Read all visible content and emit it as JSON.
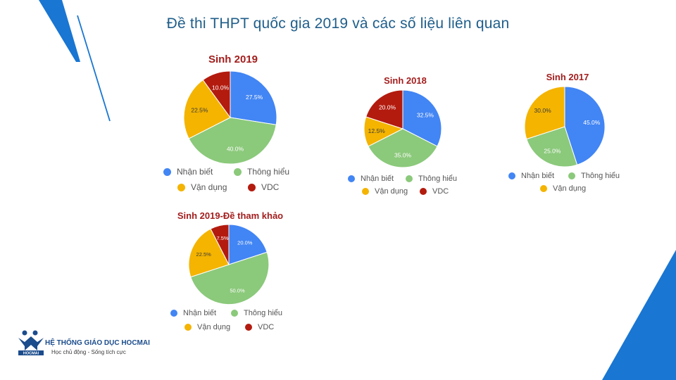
{
  "page": {
    "title": "Đề thi THPT quốc gia 2019 và các số liệu liên quan"
  },
  "colors": {
    "nhan_biet": "#4285f4",
    "thong_hieu": "#8bc97b",
    "van_dung": "#f4b400",
    "vdc": "#b31b0f",
    "title_red": "#a31d1d",
    "accent_blue": "#1976d2"
  },
  "chart_data": [
    {
      "type": "pie",
      "title": "Sinh 2019",
      "labels": [
        "Nhận biết",
        "Thông hiểu",
        "Vận dụng",
        "VDC"
      ],
      "values": [
        27.5,
        40.0,
        22.5,
        10.0
      ],
      "value_labels": [
        "27.5%",
        "40.0%",
        "22.5%",
        "10.0%"
      ],
      "legend_rows": [
        [
          "Nhận biết",
          "Thông hiểu"
        ],
        [
          "Vận dụng",
          "VDC"
        ]
      ],
      "legend_placement": "bottom"
    },
    {
      "type": "pie",
      "title": "Sinh 2018",
      "labels": [
        "Nhận biết",
        "Thông hiểu",
        "Vận dụng",
        "VDC"
      ],
      "values": [
        32.5,
        35.0,
        12.5,
        20.0
      ],
      "value_labels": [
        "32.5%",
        "35.0%",
        "12.5%",
        "20.0%"
      ],
      "legend_rows": [
        [
          "Nhận biết",
          "Thông hiểu"
        ],
        [
          "Vận dụng",
          "VDC"
        ]
      ],
      "legend_placement": "bottom"
    },
    {
      "type": "pie",
      "title": "Sinh 2017",
      "labels": [
        "Nhận biết",
        "Thông hiểu",
        "Vận dụng"
      ],
      "values": [
        45.0,
        25.0,
        30.0
      ],
      "value_labels": [
        "45.0%",
        "25.0%",
        "30.0%"
      ],
      "legend_rows": [
        [
          "Nhận biết",
          "Thông hiểu"
        ],
        [
          "Vận dụng"
        ]
      ],
      "legend_placement": "bottom"
    },
    {
      "type": "pie",
      "title": "Sinh 2019-Đề tham khảo",
      "labels": [
        "Nhận biết",
        "Thông hiểu",
        "Vận dụng",
        "VDC"
      ],
      "values": [
        20.0,
        50.0,
        22.5,
        7.5
      ],
      "value_labels": [
        "20.0%",
        "50.0%",
        "22.5%",
        "7.5%"
      ],
      "legend_rows": [
        [
          "Nhận biết",
          "Thông hiểu"
        ],
        [
          "Vận dụng",
          "VDC"
        ]
      ],
      "legend_placement": "bottom"
    }
  ],
  "logo": {
    "name": "HỆ THỐNG GIÁO DỤC HOCMAI",
    "slogan": "Học chủ động - Sống tích cực",
    "badge": "HOCMAI"
  }
}
